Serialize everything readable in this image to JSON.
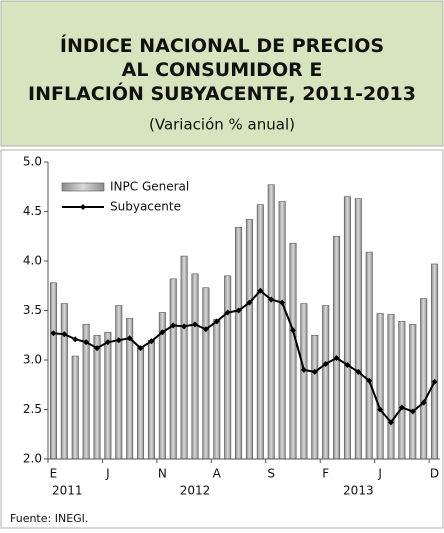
{
  "chart_data": {
    "type": "bar_line",
    "title": "ÍNDICE NACIONAL DE PRECIOS AL CONSUMIDOR E INFLACIÓN SUBYACENTE, 2011-2013",
    "subtitle": "(Variación % anual)",
    "categories": [
      "E",
      null,
      null,
      null,
      null,
      "J",
      null,
      null,
      null,
      null,
      "N",
      null,
      null,
      null,
      null,
      "A",
      null,
      null,
      null,
      null,
      "S",
      null,
      null,
      null,
      null,
      "F",
      null,
      null,
      null,
      null,
      "J",
      null,
      null,
      null,
      null,
      "D"
    ],
    "year_categories": [
      "2011",
      null,
      null,
      null,
      null,
      null,
      null,
      null,
      null,
      null,
      null,
      null,
      null,
      "2012",
      null,
      null,
      null,
      null,
      null,
      null,
      null,
      null,
      null,
      null,
      null,
      null,
      null,
      null,
      "2013",
      null,
      null,
      null,
      null,
      null,
      null,
      null
    ],
    "series": [
      {
        "name": "INPC General",
        "kind": "bar",
        "color": "#a6a6a6",
        "values": [
          3.78,
          3.57,
          3.04,
          3.36,
          3.25,
          3.28,
          3.55,
          3.42,
          3.14,
          3.2,
          3.48,
          3.82,
          4.05,
          3.87,
          3.73,
          3.41,
          3.85,
          4.34,
          4.42,
          4.57,
          4.77,
          4.6,
          4.18,
          3.57,
          3.25,
          3.55,
          4.25,
          4.65,
          4.63,
          4.09,
          3.47,
          3.46,
          3.39,
          3.36,
          3.62,
          3.97
        ]
      },
      {
        "name": "Subyacente",
        "kind": "line",
        "color": "#000000",
        "values": [
          3.27,
          3.26,
          3.21,
          3.18,
          3.12,
          3.18,
          3.2,
          3.22,
          3.12,
          3.19,
          3.28,
          3.35,
          3.34,
          3.36,
          3.31,
          3.39,
          3.48,
          3.5,
          3.58,
          3.7,
          3.61,
          3.58,
          3.3,
          2.9,
          2.88,
          2.96,
          3.02,
          2.95,
          2.88,
          2.79,
          2.5,
          2.37,
          2.52,
          2.48,
          2.57,
          2.78
        ]
      }
    ],
    "ylim": [
      2.0,
      5.0
    ],
    "yticks": [
      {
        "value": 2,
        "label": "2.0"
      },
      {
        "value": 2.5,
        "label": "2.5"
      },
      {
        "value": 3,
        "label": "3.0"
      },
      {
        "value": 3.5,
        "label": "3.5"
      },
      {
        "value": 4,
        "label": "4.0"
      },
      {
        "value": 4.5,
        "label": "4.5"
      },
      {
        "value": 5,
        "label": "5.0"
      }
    ],
    "legend": "upper left",
    "source": "Fuente: INEGI."
  }
}
